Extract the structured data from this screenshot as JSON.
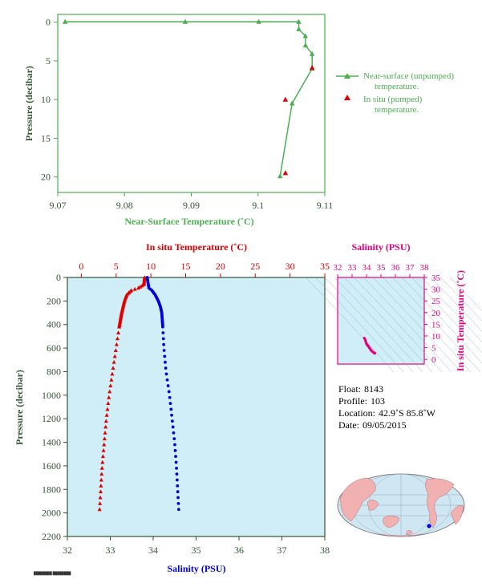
{
  "chart_data": [
    {
      "type": "line",
      "xlabel": "Near-Surface Temperature (˚C)",
      "ylabel": "Pressure (decibar)",
      "xlim": [
        9.07,
        9.11
      ],
      "ylim": [
        22,
        -1
      ],
      "x_ticks": [
        "9.07",
        "9.08",
        "9.09",
        "9.1",
        "9.11"
      ],
      "x_tick_values": [
        9.07,
        9.08,
        9.09,
        9.1,
        9.11
      ],
      "y_ticks": [
        "0",
        "5",
        "10",
        "15",
        "20"
      ],
      "y_tick_values": [
        0,
        5,
        10,
        15,
        20
      ],
      "legend_position": "right",
      "legend": [
        {
          "line1": "Near-surface (unpumped)",
          "line2": "temperature."
        },
        {
          "line1": "In situ (pumped)",
          "line2": "temperature."
        }
      ],
      "series": [
        {
          "name": "Near-surface (unpumped) temperature.",
          "color": "#4caf50",
          "marker": "triangle",
          "points": [
            [
              9.0711,
              -0.05
            ],
            [
              9.0891,
              -0.05
            ],
            [
              9.1001,
              -0.05
            ],
            [
              9.1061,
              -0.05
            ],
            [
              9.1061,
              0.9
            ],
            [
              9.1071,
              1.8
            ],
            [
              9.1071,
              3.0
            ],
            [
              9.1081,
              4.1
            ],
            [
              9.1081,
              6.0
            ],
            [
              9.1051,
              10.5
            ],
            [
              9.1033,
              19.9
            ]
          ]
        },
        {
          "name": "In situ (pumped) temperature.",
          "color": "#e00000",
          "marker": "triangle",
          "points": [
            [
              9.1081,
              5.9
            ],
            [
              9.1041,
              10.0
            ],
            [
              9.1041,
              19.5
            ]
          ]
        }
      ]
    },
    {
      "type": "scatter",
      "title_top": "In situ Temperature (˚C)",
      "xlabel": "Salinity (PSU)",
      "ylabel": "Pressure (decibar)",
      "temp_lim": [
        -2,
        35
      ],
      "sal_lim": [
        32,
        38
      ],
      "ylim": [
        2200,
        0
      ],
      "temp_ticks": [
        "0",
        "5",
        "10",
        "15",
        "20",
        "25",
        "30",
        "35"
      ],
      "temp_tick_values": [
        0,
        5,
        10,
        15,
        20,
        25,
        30,
        35
      ],
      "sal_ticks": [
        "32",
        "33",
        "34",
        "35",
        "36",
        "37",
        "38"
      ],
      "sal_tick_values": [
        32,
        33,
        34,
        35,
        36,
        37,
        38
      ],
      "y_ticks": [
        "0",
        "200",
        "400",
        "600",
        "800",
        "1000",
        "1200",
        "1400",
        "1600",
        "1800",
        "2000",
        "2200"
      ],
      "y_tick_values": [
        0,
        200,
        400,
        600,
        800,
        1000,
        1200,
        1400,
        1600,
        1800,
        2000,
        2200
      ],
      "background": "#d0eef7",
      "series": [
        {
          "name": "In situ Temperature",
          "color": "#e00000",
          "marker": "triangle",
          "profile": [
            [
              0,
              9.1
            ],
            [
              60,
              9.0
            ],
            [
              90,
              8.2
            ],
            [
              110,
              7.2
            ],
            [
              150,
              6.5
            ],
            [
              200,
              6.2
            ],
            [
              300,
              5.8
            ],
            [
              400,
              5.5
            ],
            [
              600,
              5.0
            ],
            [
              800,
              4.5
            ],
            [
              1000,
              4.0
            ],
            [
              1200,
              3.6
            ],
            [
              1400,
              3.3
            ],
            [
              1600,
              3.0
            ],
            [
              1800,
              2.8
            ],
            [
              2000,
              2.6
            ]
          ]
        },
        {
          "name": "Salinity",
          "color": "#0000dd",
          "marker": "circle",
          "profile": [
            [
              0,
              33.86
            ],
            [
              90,
              33.9
            ],
            [
              110,
              33.97
            ],
            [
              150,
              34.05
            ],
            [
              200,
              34.12
            ],
            [
              250,
              34.17
            ],
            [
              300,
              34.2
            ],
            [
              400,
              34.22
            ],
            [
              600,
              34.25
            ],
            [
              800,
              34.3
            ],
            [
              1000,
              34.38
            ],
            [
              1200,
              34.44
            ],
            [
              1400,
              34.5
            ],
            [
              1600,
              34.54
            ],
            [
              1800,
              34.57
            ],
            [
              2000,
              34.6
            ]
          ]
        }
      ]
    },
    {
      "type": "scatter",
      "title": "Salinity (PSU)",
      "ylabel": "In situ Temperature (˚C)",
      "xlim": [
        32,
        38
      ],
      "ylim": [
        -2,
        35
      ],
      "x_ticks": [
        "32",
        "33",
        "34",
        "35",
        "36",
        "37",
        "38"
      ],
      "x_tick_values": [
        32,
        33,
        34,
        35,
        36,
        37,
        38
      ],
      "y_ticks": [
        "0",
        "5",
        "10",
        "15",
        "20",
        "25",
        "30",
        "35"
      ],
      "y_tick_values": [
        0,
        5,
        10,
        15,
        20,
        25,
        30,
        35
      ],
      "color": "#e6007e",
      "points": [
        [
          33.85,
          9.1
        ],
        [
          33.9,
          8.5
        ],
        [
          33.95,
          7.5
        ],
        [
          34.0,
          6.6
        ],
        [
          34.05,
          6.2
        ],
        [
          34.1,
          5.8
        ],
        [
          34.15,
          5.4
        ],
        [
          34.2,
          5.0
        ],
        [
          34.25,
          4.5
        ],
        [
          34.3,
          4.0
        ],
        [
          34.38,
          3.5
        ],
        [
          34.45,
          3.1
        ],
        [
          34.52,
          2.8
        ],
        [
          34.58,
          2.6
        ]
      ]
    }
  ],
  "info": {
    "float_label": "Float:",
    "float_value": "8143",
    "profile_label": "Profile:",
    "profile_value": "103",
    "location_label": "Location:",
    "location_value": "42.9˚S  85.8˚W",
    "date_label": "Date:",
    "date_value": "09/05/2015"
  },
  "colors": {
    "green": "#4caf50",
    "red": "#e00000",
    "blue": "#0000dd",
    "magenta": "#e6007e",
    "axis_dark": "#335533",
    "panel_bg": "#d0eef7",
    "ocean": "#cfe6f3",
    "land": "#f2b1b1"
  }
}
